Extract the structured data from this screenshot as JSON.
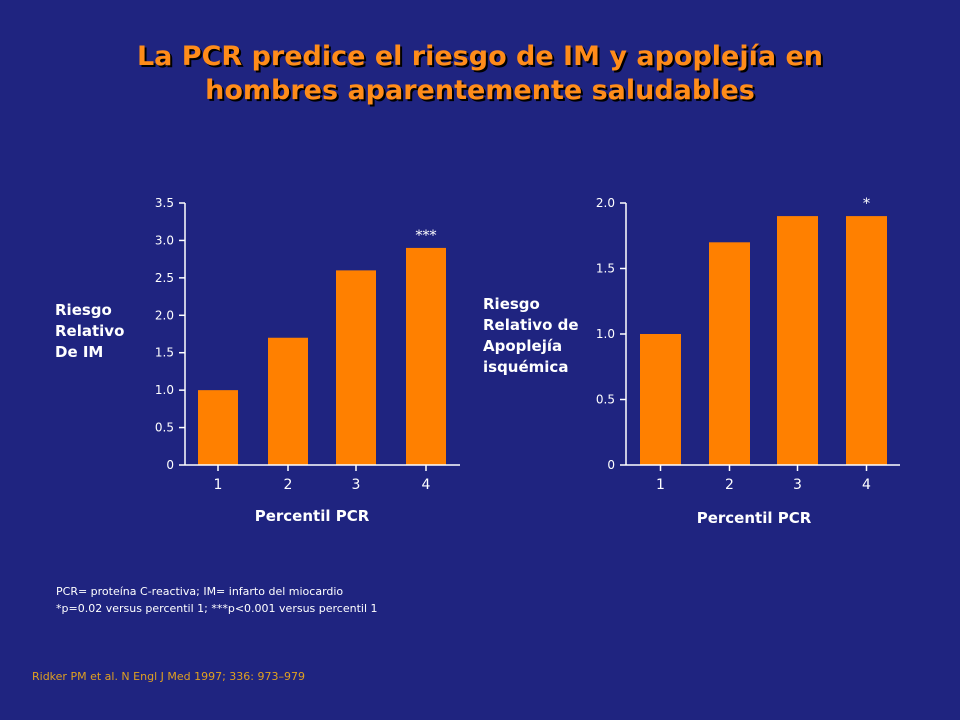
{
  "title": {
    "line1": "La PCR predice el riesgo de IM y apoplejía en",
    "line2": "hombres aparentemente saludables"
  },
  "colors": {
    "background": "#1f2480",
    "bar": "#ff8000",
    "title": "#ff8c1a",
    "axis": "#ffffff",
    "reference": "#e0a020"
  },
  "chart_data": [
    {
      "type": "bar",
      "categories": [
        "1",
        "2",
        "3",
        "4"
      ],
      "values": [
        1.0,
        1.7,
        2.6,
        2.9
      ],
      "annotations": [
        "",
        "",
        "",
        "***"
      ],
      "ylabel": [
        "Riesgo",
        "Relativo",
        "De IM"
      ],
      "xlabel": "Percentil PCR",
      "ylim": [
        0,
        3.5
      ],
      "yticks": [
        "0",
        "0.5",
        "1.0",
        "1.5",
        "2.0",
        "2.5",
        "3.0",
        "3.5"
      ]
    },
    {
      "type": "bar",
      "categories": [
        "1",
        "2",
        "3",
        "4"
      ],
      "values": [
        1.0,
        1.7,
        1.9,
        1.9
      ],
      "annotations": [
        "",
        "",
        "",
        "*"
      ],
      "ylabel": [
        "Riesgo",
        "Relativo de",
        "Apoplejía",
        "isquémica"
      ],
      "xlabel": "Percentil PCR",
      "ylim": [
        0,
        2.0
      ],
      "yticks": [
        "0",
        "0.5",
        "1.0",
        "1.5",
        "2.0"
      ]
    }
  ],
  "footnote": {
    "line1": "PCR= proteína C-reactiva; IM= infarto del miocardio",
    "line2": "*p=0.02 versus percentil 1; ***p<0.001 versus percentil 1"
  },
  "reference": "Ridker PM et al. N Engl J Med 1997; 336: 973–979"
}
